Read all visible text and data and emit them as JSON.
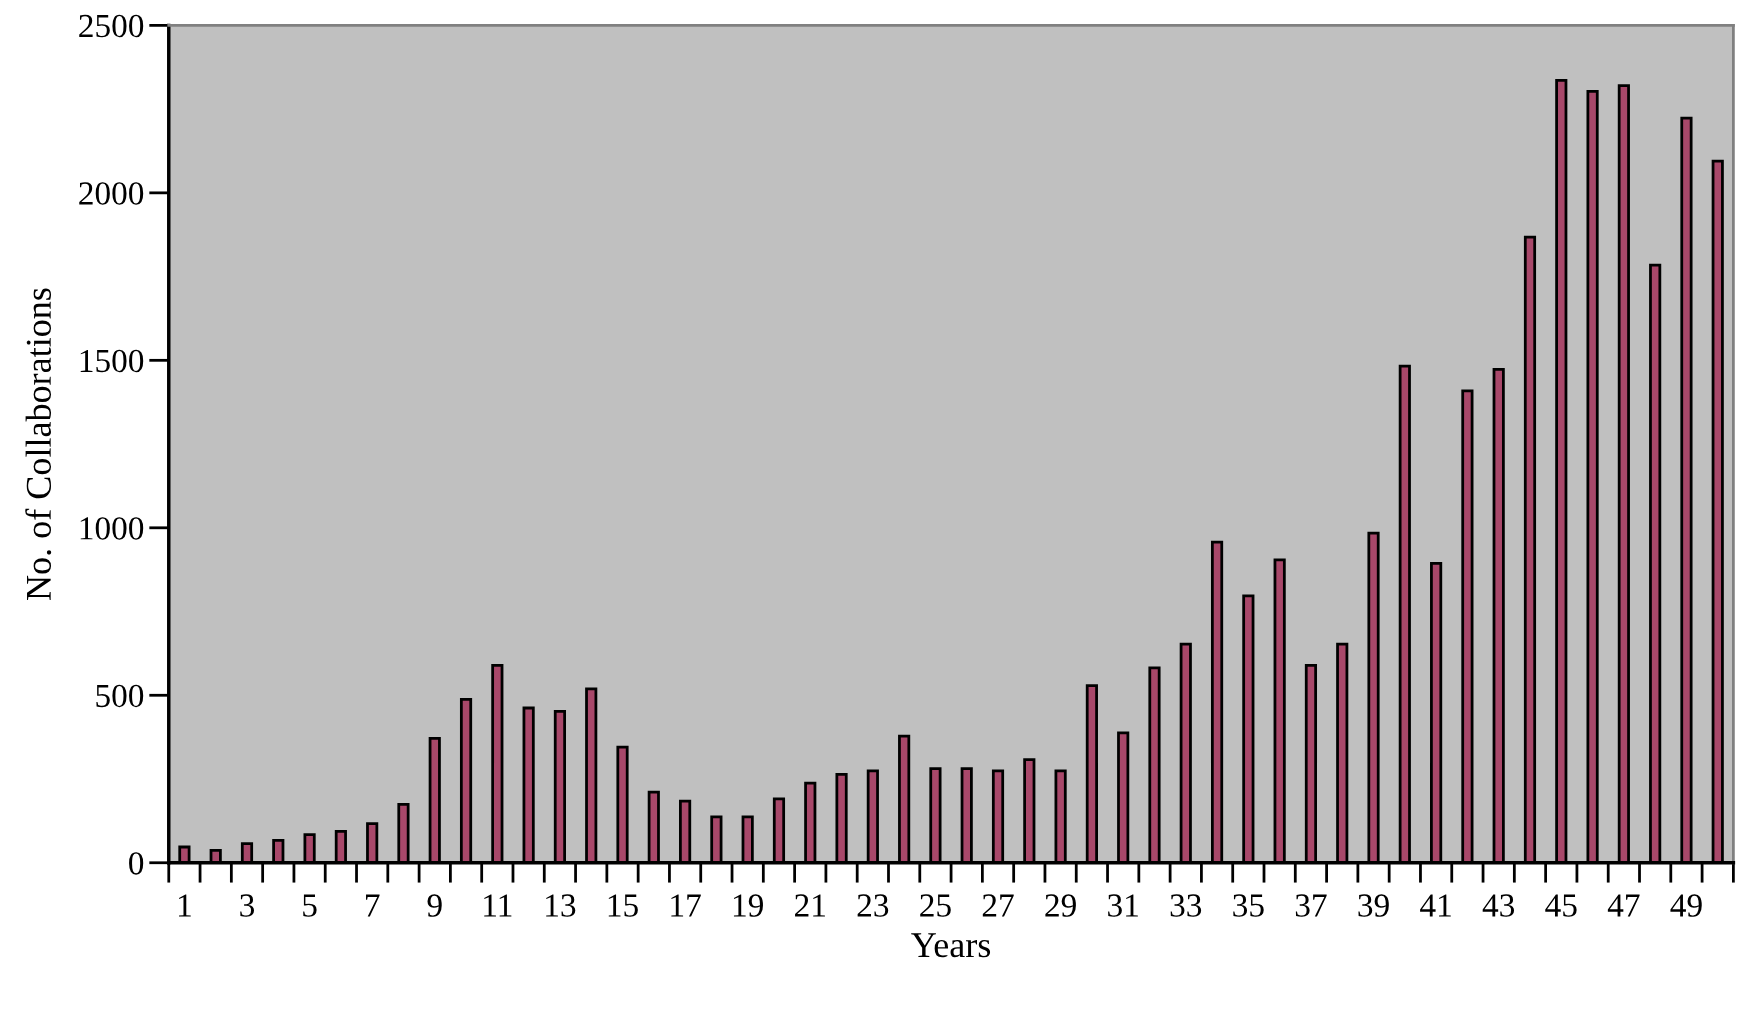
{
  "chart_data": {
    "type": "bar",
    "xlabel": "Years",
    "ylabel": "No. of Collaborations",
    "categories": [
      "1",
      null,
      "3",
      null,
      "5",
      null,
      "7",
      null,
      "9",
      null,
      "11",
      null,
      "13",
      null,
      "15",
      null,
      "17",
      null,
      "19",
      null,
      "21",
      null,
      "23",
      null,
      "25",
      null,
      "27",
      null,
      "29",
      null,
      "31",
      null,
      "33",
      null,
      "35",
      null,
      "37",
      null,
      "39",
      null,
      "41",
      null,
      "43",
      null,
      "45",
      null,
      "47",
      null,
      "49",
      null
    ],
    "values": [
      47,
      37,
      57,
      67,
      84,
      94,
      117,
      174,
      371,
      488,
      589,
      462,
      452,
      519,
      345,
      211,
      184,
      137,
      137,
      191,
      238,
      264,
      274,
      378,
      281,
      281,
      274,
      308,
      274,
      529,
      388,
      582,
      653,
      957,
      797,
      904,
      589,
      653,
      984,
      1483,
      894,
      1409,
      1473,
      1868,
      2336,
      2303,
      2320,
      1784,
      2223,
      2095
    ],
    "color": "#a8486a",
    "ylim": [
      0,
      2500
    ],
    "yticks": [
      0,
      500,
      1000,
      1500,
      2000,
      2500
    ],
    "grid": false,
    "legend": false
  }
}
